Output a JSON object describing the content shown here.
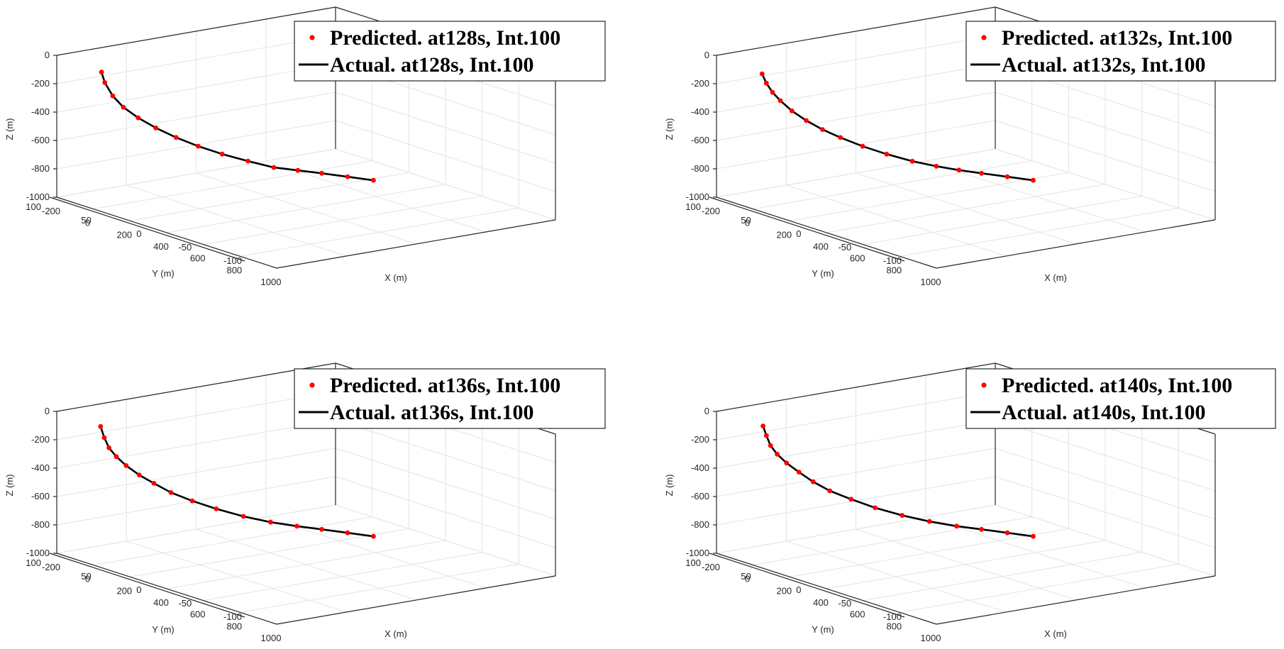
{
  "figure": {
    "colors": {
      "predicted": "#ff0000",
      "actual": "#000000",
      "grid": "#e4e4e4",
      "box": "#262626",
      "background": "#ffffff"
    }
  },
  "chart_data": [
    {
      "type": "scatter",
      "subtitle": "",
      "xlabel": "X (m)",
      "ylabel": "Y (m)",
      "zlabel": "Z (m)",
      "xlim": [
        -200,
        1000
      ],
      "ylim": [
        -100,
        100
      ],
      "zlim": [
        -1000,
        0
      ],
      "xticks": [
        "-200",
        "0",
        "200",
        "400",
        "600",
        "800",
        "1000"
      ],
      "yticks": [
        "-100",
        "-50",
        "0",
        "50",
        "100"
      ],
      "zticks": [
        "-1000",
        "-800",
        "-600",
        "-400",
        "-200",
        "0"
      ],
      "grid": true,
      "legend_position": "top-right",
      "series": [
        {
          "name": "Predicted. at128s, Int.100",
          "marker": "dot"
        },
        {
          "name": "Actual. at128s, Int.100",
          "marker": "line"
        }
      ],
      "points": [
        {
          "x": -70,
          "y": 85,
          "z": -90
        },
        {
          "x": -90,
          "y": 80,
          "z": -180
        },
        {
          "x": -100,
          "y": 73,
          "z": -290
        },
        {
          "x": -95,
          "y": 66,
          "z": -380
        },
        {
          "x": -75,
          "y": 58,
          "z": -460
        },
        {
          "x": -40,
          "y": 50,
          "z": -530
        },
        {
          "x": 10,
          "y": 42,
          "z": -590
        },
        {
          "x": 70,
          "y": 34,
          "z": -640
        },
        {
          "x": 140,
          "y": 26,
          "z": -680
        },
        {
          "x": 220,
          "y": 18,
          "z": -710
        },
        {
          "x": 300,
          "y": 10,
          "z": -735
        },
        {
          "x": 370,
          "y": 2,
          "z": -740
        },
        {
          "x": 440,
          "y": -6,
          "z": -745
        },
        {
          "x": 520,
          "y": -14,
          "z": -750
        },
        {
          "x": 600,
          "y": -22,
          "z": -755
        }
      ]
    },
    {
      "type": "scatter",
      "subtitle": "",
      "xlabel": "X (m)",
      "ylabel": "Y (m)",
      "zlabel": "Z (m)",
      "xlim": [
        -200,
        1000
      ],
      "ylim": [
        -100,
        100
      ],
      "zlim": [
        -1000,
        0
      ],
      "xticks": [
        "-200",
        "0",
        "200",
        "400",
        "600",
        "800",
        "1000"
      ],
      "yticks": [
        "-100",
        "-50",
        "0",
        "50",
        "100"
      ],
      "zticks": [
        "-1000",
        "-800",
        "-600",
        "-400",
        "-200",
        "0"
      ],
      "grid": true,
      "legend_position": "top-right",
      "series": [
        {
          "name": "Predicted. at132s, Int.100",
          "marker": "dot"
        },
        {
          "name": "Actual. at132s,  Int.100",
          "marker": "line"
        }
      ],
      "points": [
        {
          "x": -65,
          "y": 85,
          "z": -100
        },
        {
          "x": -80,
          "y": 80,
          "z": -180
        },
        {
          "x": -92,
          "y": 74,
          "z": -260
        },
        {
          "x": -95,
          "y": 68,
          "z": -330
        },
        {
          "x": -85,
          "y": 61,
          "z": -410
        },
        {
          "x": -60,
          "y": 54,
          "z": -480
        },
        {
          "x": -25,
          "y": 47,
          "z": -540
        },
        {
          "x": 20,
          "y": 40,
          "z": -590
        },
        {
          "x": 80,
          "y": 32,
          "z": -640
        },
        {
          "x": 150,
          "y": 24,
          "z": -680
        },
        {
          "x": 230,
          "y": 16,
          "z": -710
        },
        {
          "x": 300,
          "y": 8,
          "z": -730
        },
        {
          "x": 370,
          "y": 1,
          "z": -740
        },
        {
          "x": 440,
          "y": -6,
          "z": -745
        },
        {
          "x": 520,
          "y": -14,
          "z": -750
        },
        {
          "x": 600,
          "y": -22,
          "z": -755
        }
      ]
    },
    {
      "type": "scatter",
      "subtitle": "",
      "xlabel": "X (m)",
      "ylabel": "Y (m)",
      "zlabel": "Z (m)",
      "xlim": [
        -200,
        1000
      ],
      "ylim": [
        -100,
        100
      ],
      "zlim": [
        -1000,
        0
      ],
      "xticks": [
        "-200",
        "0",
        "200",
        "400",
        "600",
        "800",
        "1000"
      ],
      "yticks": [
        "-100",
        "-50",
        "0",
        "50",
        "100"
      ],
      "zticks": [
        "-1000",
        "-800",
        "-600",
        "-400",
        "-200",
        "0"
      ],
      "grid": true,
      "legend_position": "top-right",
      "series": [
        {
          "name": "Predicted. at136s, Int.100",
          "marker": "dot"
        },
        {
          "name": "Actual. at136s,  Int.100",
          "marker": "line"
        }
      ],
      "points": [
        {
          "x": -75,
          "y": 85,
          "z": -80
        },
        {
          "x": -85,
          "y": 81,
          "z": -170
        },
        {
          "x": -90,
          "y": 77,
          "z": -250
        },
        {
          "x": -88,
          "y": 72,
          "z": -320
        },
        {
          "x": -80,
          "y": 66,
          "z": -390
        },
        {
          "x": -62,
          "y": 59,
          "z": -460
        },
        {
          "x": -35,
          "y": 52,
          "z": -520
        },
        {
          "x": 5,
          "y": 45,
          "z": -580
        },
        {
          "x": 60,
          "y": 37,
          "z": -630
        },
        {
          "x": 130,
          "y": 29,
          "z": -670
        },
        {
          "x": 210,
          "y": 20,
          "z": -705
        },
        {
          "x": 290,
          "y": 11,
          "z": -728
        },
        {
          "x": 365,
          "y": 2,
          "z": -740
        },
        {
          "x": 440,
          "y": -6,
          "z": -745
        },
        {
          "x": 520,
          "y": -14,
          "z": -750
        },
        {
          "x": 600,
          "y": -22,
          "z": -755
        }
      ]
    },
    {
      "type": "scatter",
      "subtitle": "",
      "xlabel": "X (m)",
      "ylabel": "Y (m)",
      "zlabel": "Z (m)",
      "xlim": [
        -200,
        1000
      ],
      "ylim": [
        -100,
        100
      ],
      "zlim": [
        -1000,
        0
      ],
      "xticks": [
        "-200",
        "0",
        "200",
        "400",
        "600",
        "800",
        "1000"
      ],
      "yticks": [
        "-100",
        "-50",
        "0",
        "50",
        "100"
      ],
      "zticks": [
        "-1000",
        "-800",
        "-600",
        "-400",
        "-200",
        "0"
      ],
      "grid": true,
      "legend_position": "top-right",
      "series": [
        {
          "name": "Predicted. at140s, Int.100",
          "marker": "dot"
        },
        {
          "name": "Actual. at140s, Int.100",
          "marker": "line"
        }
      ],
      "points": [
        {
          "x": -60,
          "y": 85,
          "z": -70
        },
        {
          "x": -72,
          "y": 81,
          "z": -150
        },
        {
          "x": -80,
          "y": 77,
          "z": -230
        },
        {
          "x": -82,
          "y": 72,
          "z": -300
        },
        {
          "x": -76,
          "y": 66,
          "z": -370
        },
        {
          "x": -62,
          "y": 59,
          "z": -440
        },
        {
          "x": -38,
          "y": 52,
          "z": -510
        },
        {
          "x": 0,
          "y": 45,
          "z": -570
        },
        {
          "x": 55,
          "y": 37,
          "z": -620
        },
        {
          "x": 125,
          "y": 29,
          "z": -665
        },
        {
          "x": 205,
          "y": 20,
          "z": -700
        },
        {
          "x": 285,
          "y": 11,
          "z": -725
        },
        {
          "x": 365,
          "y": 2,
          "z": -740
        },
        {
          "x": 440,
          "y": -6,
          "z": -745
        },
        {
          "x": 520,
          "y": -14,
          "z": -750
        },
        {
          "x": 600,
          "y": -22,
          "z": -755
        }
      ]
    }
  ]
}
